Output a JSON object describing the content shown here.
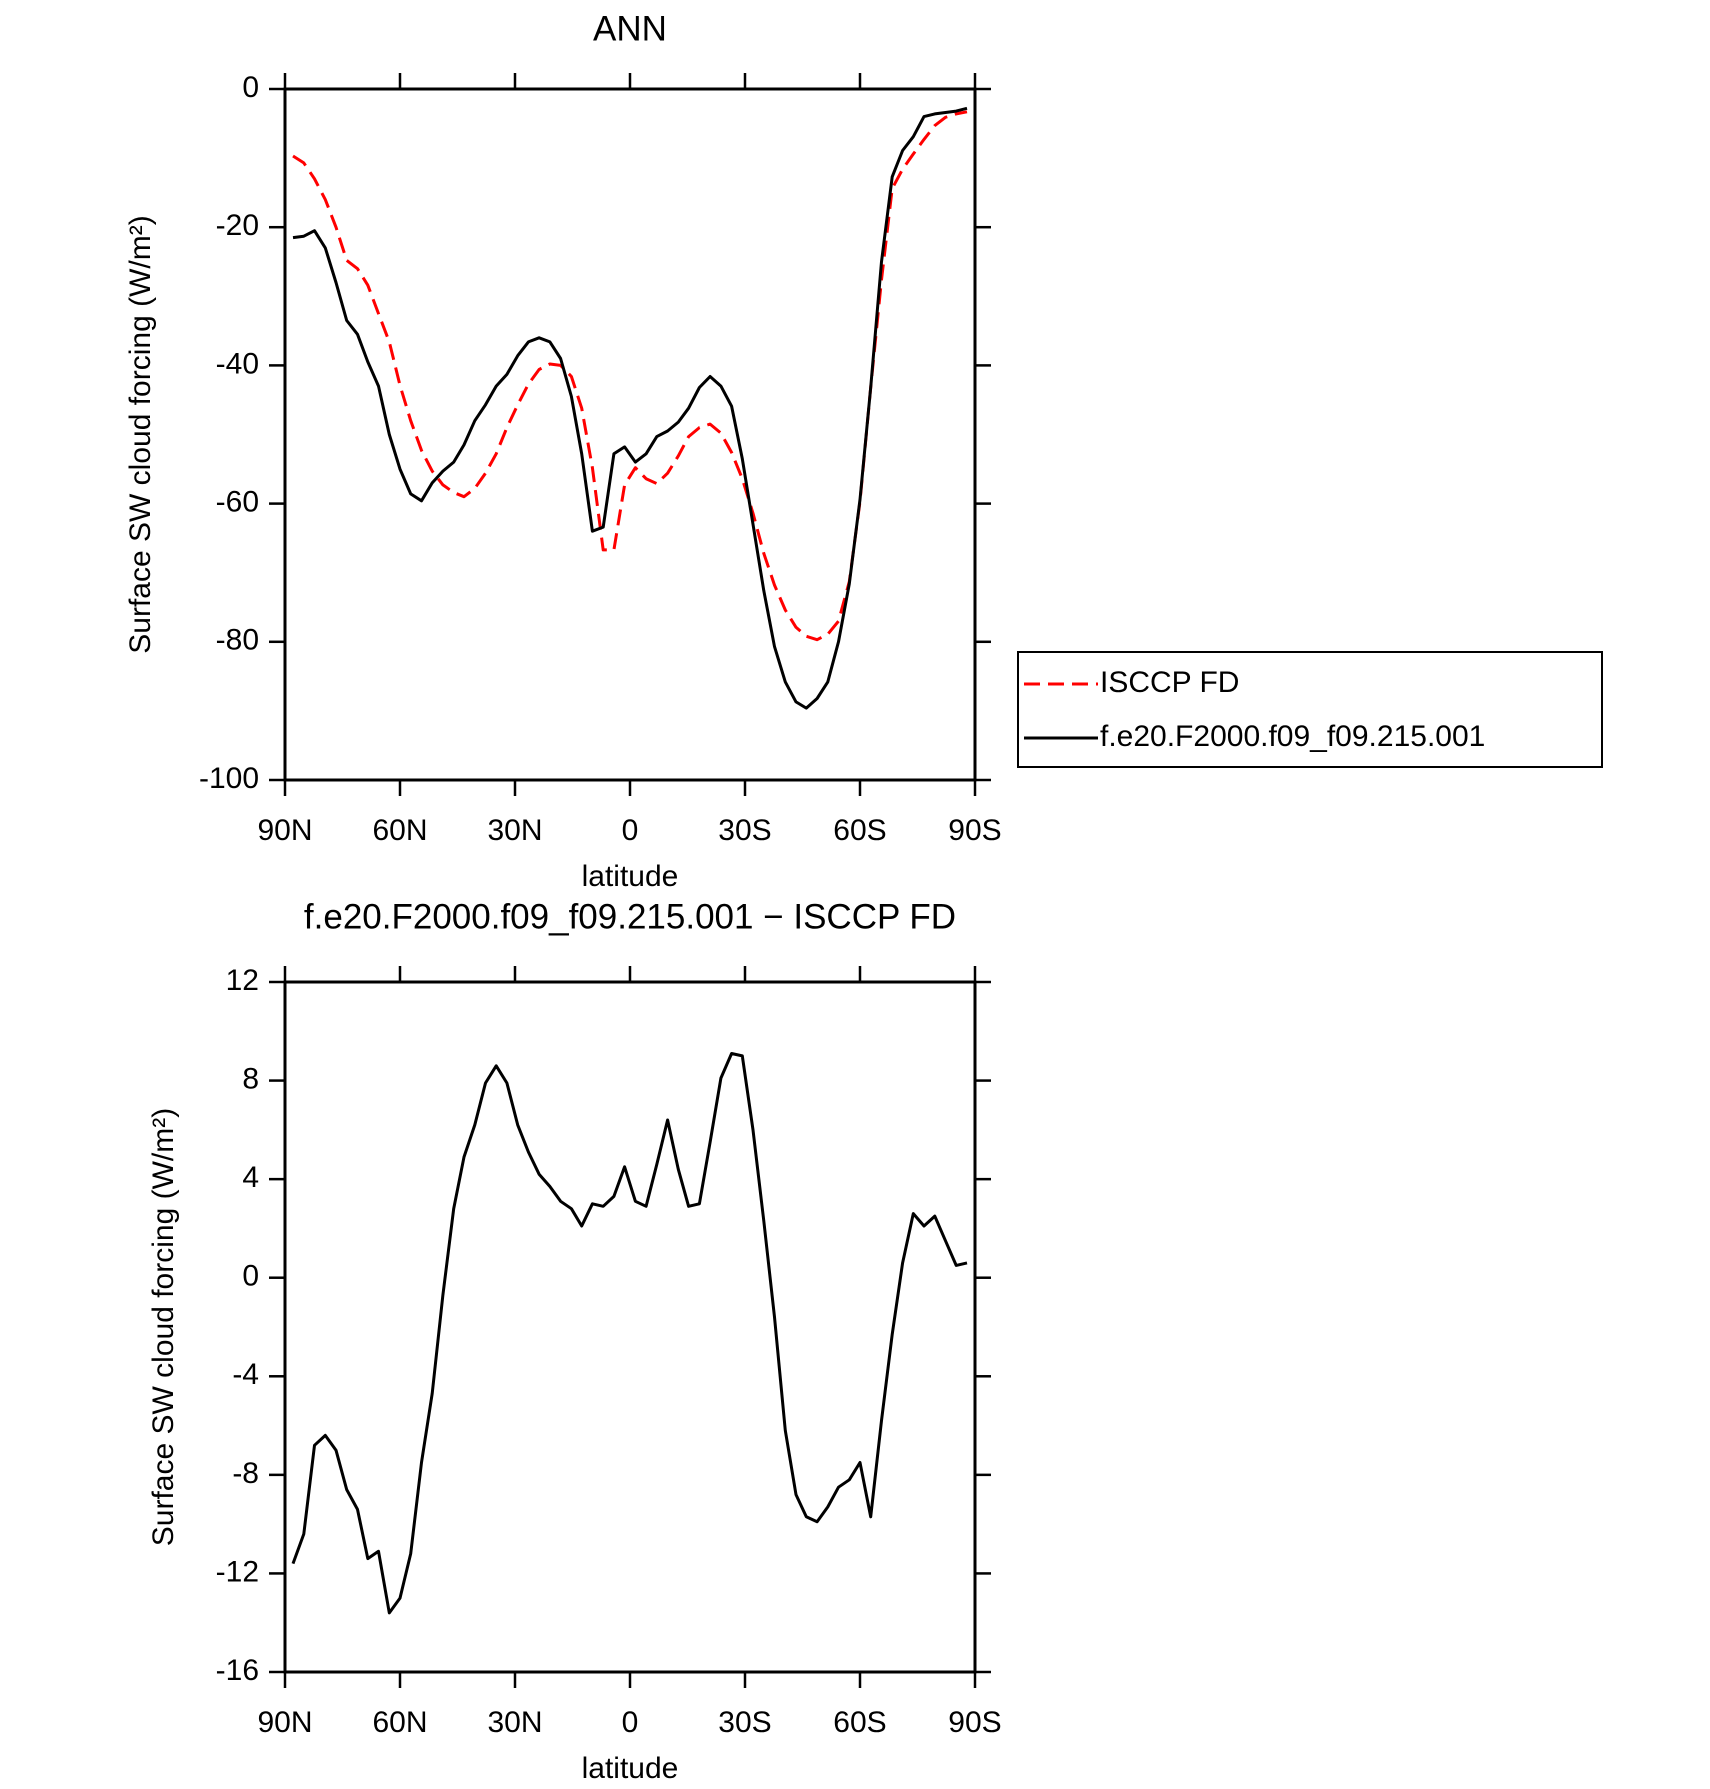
{
  "chart_data": [
    {
      "type": "line",
      "title": "ANN",
      "xlabel": "latitude",
      "ylabel": "Surface SW cloud forcing (W/m²)",
      "x": [
        87.9,
        85.1,
        82.3,
        79.5,
        76.7,
        73.9,
        71.1,
        68.4,
        65.6,
        62.8,
        60.0,
        57.2,
        54.4,
        51.6,
        48.8,
        46.0,
        43.3,
        40.5,
        37.7,
        34.9,
        32.1,
        29.3,
        26.5,
        23.7,
        20.9,
        18.1,
        15.3,
        12.6,
        9.8,
        7.0,
        4.2,
        1.4,
        -1.4,
        -4.2,
        -7.0,
        -9.8,
        -12.6,
        -15.3,
        -18.1,
        -20.9,
        -23.7,
        -26.5,
        -29.3,
        -32.1,
        -34.9,
        -37.7,
        -40.5,
        -43.3,
        -46.0,
        -48.8,
        -51.6,
        -54.4,
        -57.2,
        -60.0,
        -62.8,
        -65.6,
        -68.4,
        -71.1,
        -73.9,
        -76.7,
        -79.5,
        -82.3,
        -85.1,
        -87.9
      ],
      "xlim": [
        90,
        -90
      ],
      "xticks": [
        {
          "value": 90,
          "label": "90N"
        },
        {
          "value": 60,
          "label": "60N"
        },
        {
          "value": 30,
          "label": "30N"
        },
        0,
        {
          "value": -30,
          "label": "30S"
        },
        {
          "value": -60,
          "label": "60S"
        },
        {
          "value": -90,
          "label": "90S"
        }
      ],
      "ylim": [
        -100,
        0
      ],
      "yticks": [
        0,
        -20,
        -40,
        -60,
        -80,
        -100
      ],
      "legend": "right",
      "series": [
        {
          "name": "ISCCP FD",
          "color": "#ff0000",
          "dash": "dashed",
          "values": [
            -9.7,
            -10.7,
            -13,
            -16,
            -20,
            -24.8,
            -26,
            -28.4,
            -32.5,
            -36.6,
            -42.9,
            -48,
            -52.3,
            -55.3,
            -57.3,
            -58.4,
            -59,
            -57.8,
            -55.6,
            -52.8,
            -49,
            -45.7,
            -42.7,
            -40.6,
            -39.8,
            -40,
            -41.6,
            -46.2,
            -54.8,
            -66.7,
            -66.7,
            -57.3,
            -54.8,
            -56.4,
            -57.1,
            -55.6,
            -53.1,
            -50.3,
            -49,
            -48.5,
            -49.8,
            -52.6,
            -56.4,
            -61.4,
            -67.2,
            -71.8,
            -75.4,
            -77.9,
            -79.2,
            -79.7,
            -78.9,
            -77,
            -71.3,
            -59.7,
            -43.2,
            -27.6,
            -14.4,
            -11.6,
            -9.4,
            -7.3,
            -5.3,
            -4.1,
            -3.6,
            -3.3
          ]
        },
        {
          "name": "f.e20.F2000.f09_f09.215.001",
          "color": "#000000",
          "values": [
            -21.5,
            -21.3,
            -20.5,
            -23,
            -28,
            -33.5,
            -35.5,
            -39.5,
            -43,
            -50,
            -55,
            -58.6,
            -59.6,
            -57,
            -55.3,
            -54,
            -51.5,
            -48,
            -45.7,
            -43,
            -41.3,
            -38.6,
            -36.6,
            -36,
            -36.6,
            -39,
            -44.5,
            -52.8,
            -64,
            -63.4,
            -52.8,
            -51.8,
            -54,
            -52.8,
            -50.3,
            -49.5,
            -48.2,
            -46.2,
            -43.2,
            -41.6,
            -43,
            -45.9,
            -53.5,
            -63,
            -72.6,
            -80.7,
            -85.8,
            -88.7,
            -89.6,
            -88.2,
            -85.8,
            -80,
            -71.6,
            -59.4,
            -43.2,
            -25,
            -12.7,
            -8.9,
            -6.9,
            -4,
            -3.6,
            -3.4,
            -3.2,
            -2.8
          ]
        }
      ]
    },
    {
      "type": "line",
      "title": "f.e20.F2000.f09_f09.215.001 − ISCCP FD",
      "xlabel": "latitude",
      "ylabel": "Surface SW cloud forcing (W/m²)",
      "x": [
        87.9,
        85.1,
        82.3,
        79.5,
        76.7,
        73.9,
        71.1,
        68.4,
        65.6,
        62.8,
        60.0,
        57.2,
        54.4,
        51.6,
        48.8,
        46.0,
        43.3,
        40.5,
        37.7,
        34.9,
        32.1,
        29.3,
        26.5,
        23.7,
        20.9,
        18.1,
        15.3,
        12.6,
        9.8,
        7.0,
        4.2,
        1.4,
        -1.4,
        -4.2,
        -7.0,
        -9.8,
        -12.6,
        -15.3,
        -18.1,
        -20.9,
        -23.7,
        -26.5,
        -29.3,
        -32.1,
        -34.9,
        -37.7,
        -40.5,
        -43.3,
        -46.0,
        -48.8,
        -51.6,
        -54.4,
        -57.2,
        -60.0,
        -62.8,
        -65.6,
        -68.4,
        -71.1,
        -73.9,
        -76.7,
        -79.5,
        -82.3,
        -85.1,
        -87.9
      ],
      "xlim": [
        90,
        -90
      ],
      "xticks": [
        {
          "value": 90,
          "label": "90N"
        },
        {
          "value": 60,
          "label": "60N"
        },
        {
          "value": 30,
          "label": "30N"
        },
        0,
        {
          "value": -30,
          "label": "30S"
        },
        {
          "value": -60,
          "label": "60S"
        },
        {
          "value": -90,
          "label": "90S"
        }
      ],
      "ylim": [
        -16,
        12
      ],
      "yticks": [
        12,
        8,
        4,
        0,
        -4,
        -8,
        -12,
        -16
      ],
      "color": "#000000",
      "values": [
        -11.6,
        -10.4,
        -6.8,
        -6.4,
        -7,
        -8.6,
        -9.4,
        -11.4,
        -11.1,
        -13.6,
        -13,
        -11.2,
        -7.5,
        -4.7,
        -0.7,
        2.8,
        4.9,
        6.2,
        7.9,
        8.6,
        7.9,
        6.2,
        5.1,
        4.2,
        3.7,
        3.1,
        2.8,
        2.1,
        3.0,
        2.9,
        3.3,
        4.5,
        3.1,
        2.9,
        4.6,
        6.4,
        4.4,
        2.9,
        3.0,
        5.5,
        8.1,
        9.1,
        9.0,
        6.0,
        2.3,
        -1.6,
        -6.2,
        -8.8,
        -9.7,
        -9.9,
        -9.3,
        -8.5,
        -8.2,
        -7.5,
        -9.7,
        -5.8,
        -2.3,
        0.6,
        2.6,
        2.1,
        2.5,
        1.5,
        0.5,
        0.6
      ]
    }
  ]
}
